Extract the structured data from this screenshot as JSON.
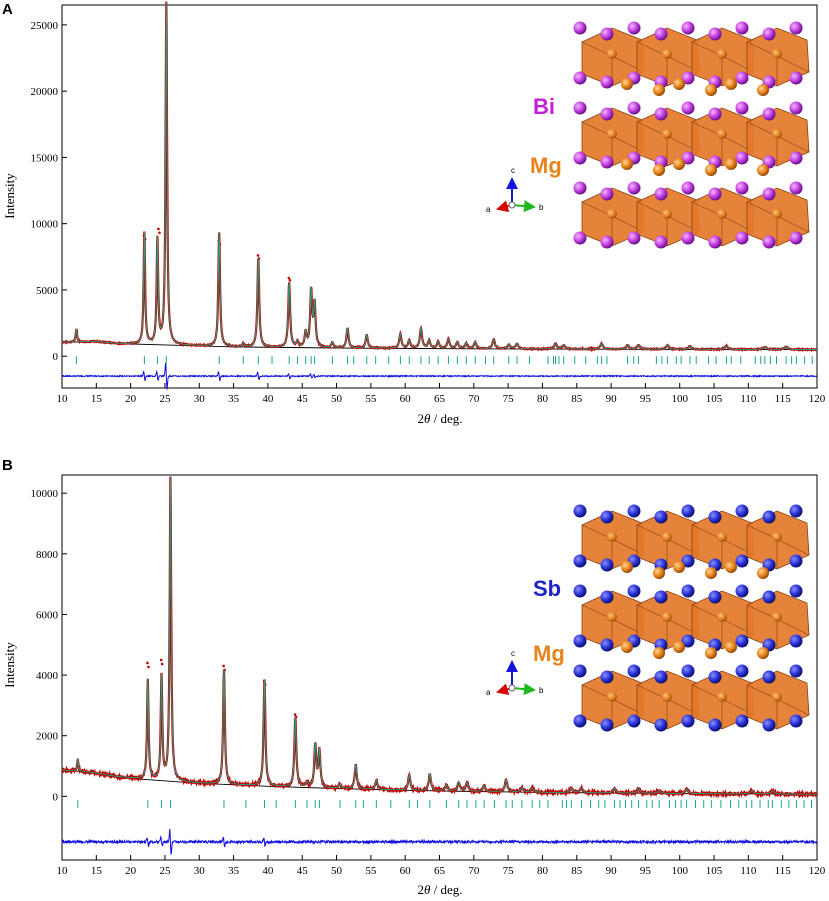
{
  "chart_data": [
    {
      "panel_label": "A",
      "type": "line",
      "xlabel_pre": "2",
      "xlabel_theta": "θ",
      "xlabel_post": " / deg.",
      "ylabel": "Intensity",
      "xlim": [
        10,
        120
      ],
      "ylim": [
        -2400,
        26500
      ],
      "xticks": [
        10,
        15,
        20,
        25,
        30,
        35,
        40,
        45,
        50,
        55,
        60,
        65,
        70,
        75,
        80,
        85,
        90,
        95,
        100,
        105,
        110,
        115,
        120
      ],
      "yticks": [
        0,
        5000,
        10000,
        15000,
        20000,
        25000
      ],
      "peaks": [
        [
          12.1,
          1000
        ],
        [
          22.0,
          8400
        ],
        [
          23.9,
          7900
        ],
        [
          25.2,
          25800
        ],
        [
          32.9,
          8600
        ],
        [
          36.4,
          250
        ],
        [
          38.6,
          6700
        ],
        [
          43.1,
          4900
        ],
        [
          44.3,
          400
        ],
        [
          45.5,
          1100
        ],
        [
          46.3,
          4200
        ],
        [
          46.8,
          3200
        ],
        [
          49.4,
          400
        ],
        [
          51.6,
          1500
        ],
        [
          54.4,
          1000
        ],
        [
          59.3,
          1100
        ],
        [
          60.6,
          600
        ],
        [
          62.3,
          1500
        ],
        [
          63.5,
          600
        ],
        [
          64.8,
          500
        ],
        [
          66.3,
          700
        ],
        [
          67.6,
          500
        ],
        [
          68.9,
          400
        ],
        [
          70.2,
          500
        ],
        [
          72.9,
          700
        ],
        [
          75.1,
          300
        ],
        [
          76.3,
          400
        ],
        [
          81.9,
          400
        ],
        [
          83.1,
          300
        ],
        [
          88.6,
          400
        ],
        [
          92.4,
          300
        ],
        [
          94.0,
          300
        ],
        [
          98.2,
          300
        ],
        [
          101.5,
          250
        ],
        [
          106.8,
          250
        ],
        [
          112.4,
          200
        ],
        [
          115.5,
          200
        ]
      ],
      "obs_marked_peaks": [
        [
          22.0,
          9100
        ],
        [
          24.1,
          9600
        ],
        [
          32.9,
          8700
        ],
        [
          38.6,
          7600
        ],
        [
          43.1,
          5900
        ]
      ],
      "baseline": [
        [
          10,
          1050
        ],
        [
          15,
          1100
        ],
        [
          18,
          950
        ],
        [
          25,
          850
        ],
        [
          35,
          700
        ],
        [
          50,
          620
        ],
        [
          70,
          560
        ],
        [
          90,
          530
        ],
        [
          120,
          500
        ]
      ],
      "difference_level": -1500,
      "tick_row_level": -300,
      "reflections": [
        12.1,
        22.0,
        23.9,
        25.2,
        32.9,
        36.4,
        38.6,
        40.6,
        43.1,
        44.3,
        45.5,
        46.3,
        46.8,
        49.4,
        51.6,
        52.5,
        54.4,
        55.7,
        57.6,
        59.3,
        60.6,
        62.3,
        63.5,
        64.8,
        66.3,
        67.6,
        68.9,
        70.2,
        71.7,
        72.9,
        75.1,
        76.3,
        78.1,
        80.8,
        81.6,
        81.9,
        82.4,
        83.1,
        84.7,
        86.3,
        88.0,
        88.6,
        89.4,
        92.4,
        93.3,
        94.0,
        96.6,
        97.4,
        98.2,
        99.5,
        100.2,
        101.5,
        102.4,
        104.2,
        105.3,
        106.8,
        107.5,
        108.9,
        111.0,
        111.8,
        112.4,
        113.2,
        114.1,
        115.5,
        116.3,
        117.0,
        118.2,
        119.3
      ],
      "structure": {
        "labels": [
          {
            "text": "Bi",
            "color": "#c21fd6"
          },
          {
            "text": "Mg",
            "color": "#e8841a"
          }
        ],
        "anion_color": "#c33de0",
        "anion_dark": "#5e0b80"
      },
      "axes_triad": {
        "a": "a",
        "b": "b",
        "c": "c"
      },
      "colors": {
        "observed": "#c00000",
        "calculated": "#17a98a",
        "background": "#000000",
        "difference": "#1010e0",
        "ticks": "#17a98a",
        "octahedron": "#e4782a",
        "mg_atom": "#e8841a"
      }
    },
    {
      "panel_label": "B",
      "type": "line",
      "xlabel_pre": "2",
      "xlabel_theta": "θ",
      "xlabel_post": " / deg.",
      "ylabel": "Intensity",
      "xlim": [
        10,
        120
      ],
      "ylim": [
        -2100,
        10600
      ],
      "xticks": [
        10,
        15,
        20,
        25,
        30,
        35,
        40,
        45,
        50,
        55,
        60,
        65,
        70,
        75,
        80,
        85,
        90,
        95,
        100,
        105,
        110,
        115,
        120
      ],
      "yticks": [
        0,
        2000,
        4000,
        6000,
        8000,
        10000
      ],
      "peaks": [
        [
          12.3,
          400
        ],
        [
          22.5,
          3300
        ],
        [
          24.5,
          3400
        ],
        [
          25.8,
          10000
        ],
        [
          33.6,
          3800
        ],
        [
          39.5,
          3500
        ],
        [
          44.0,
          2300
        ],
        [
          45.7,
          150
        ],
        [
          46.9,
          1400
        ],
        [
          47.5,
          1200
        ],
        [
          50.5,
          150
        ],
        [
          52.8,
          800
        ],
        [
          55.8,
          300
        ],
        [
          60.6,
          500
        ],
        [
          63.6,
          550
        ],
        [
          66.0,
          200
        ],
        [
          67.8,
          300
        ],
        [
          69.0,
          300
        ],
        [
          71.5,
          200
        ],
        [
          74.7,
          400
        ],
        [
          77.0,
          150
        ],
        [
          78.5,
          150
        ],
        [
          84.2,
          150
        ],
        [
          85.7,
          150
        ],
        [
          90.5,
          150
        ],
        [
          94.0,
          150
        ],
        [
          97.0,
          100
        ],
        [
          101.0,
          150
        ],
        [
          110.5,
          100
        ],
        [
          113.5,
          100
        ]
      ],
      "obs_marked_peaks": [
        [
          22.5,
          4400
        ],
        [
          24.5,
          4500
        ],
        [
          33.6,
          4300
        ],
        [
          39.5,
          3800
        ],
        [
          44.0,
          2700
        ]
      ],
      "baseline": [
        [
          10,
          870
        ],
        [
          14,
          800
        ],
        [
          18,
          650
        ],
        [
          22,
          560
        ],
        [
          30,
          430
        ],
        [
          40,
          330
        ],
        [
          50,
          260
        ],
        [
          60,
          200
        ],
        [
          70,
          160
        ],
        [
          80,
          130
        ],
        [
          90,
          110
        ],
        [
          100,
          90
        ],
        [
          120,
          70
        ]
      ],
      "difference_level": -1500,
      "tick_row_level": -250,
      "reflections": [
        12.3,
        22.5,
        24.5,
        25.8,
        33.6,
        36.8,
        39.5,
        41.2,
        44.0,
        45.7,
        46.9,
        47.5,
        50.5,
        52.8,
        53.9,
        55.8,
        57.9,
        60.6,
        61.8,
        63.6,
        66.0,
        67.8,
        69.0,
        70.3,
        71.5,
        73.0,
        74.7,
        75.6,
        77.0,
        78.5,
        79.6,
        80.8,
        82.9,
        83.5,
        84.2,
        85.7,
        87.0,
        88.2,
        89.1,
        90.5,
        91.3,
        92.1,
        93.0,
        94.0,
        95.2,
        96.0,
        97.0,
        98.5,
        99.4,
        100.2,
        101.0,
        102.3,
        103.5,
        104.6,
        106.0,
        107.4,
        108.6,
        109.7,
        110.5,
        111.7,
        112.9,
        113.5,
        114.8,
        115.9,
        117.0,
        118.1,
        119.2
      ],
      "structure": {
        "labels": [
          {
            "text": "Sb",
            "color": "#1c22c8"
          },
          {
            "text": "Mg",
            "color": "#e8841a"
          }
        ],
        "anion_color": "#2a33d8",
        "anion_dark": "#060a60"
      },
      "axes_triad": {
        "a": "a",
        "b": "b",
        "c": "c"
      },
      "colors": {
        "observed": "#c00000",
        "calculated": "#17a98a",
        "background": "#000000",
        "difference": "#1010e0",
        "ticks": "#17a98a",
        "octahedron": "#e4782a",
        "mg_atom": "#e8841a"
      }
    }
  ]
}
